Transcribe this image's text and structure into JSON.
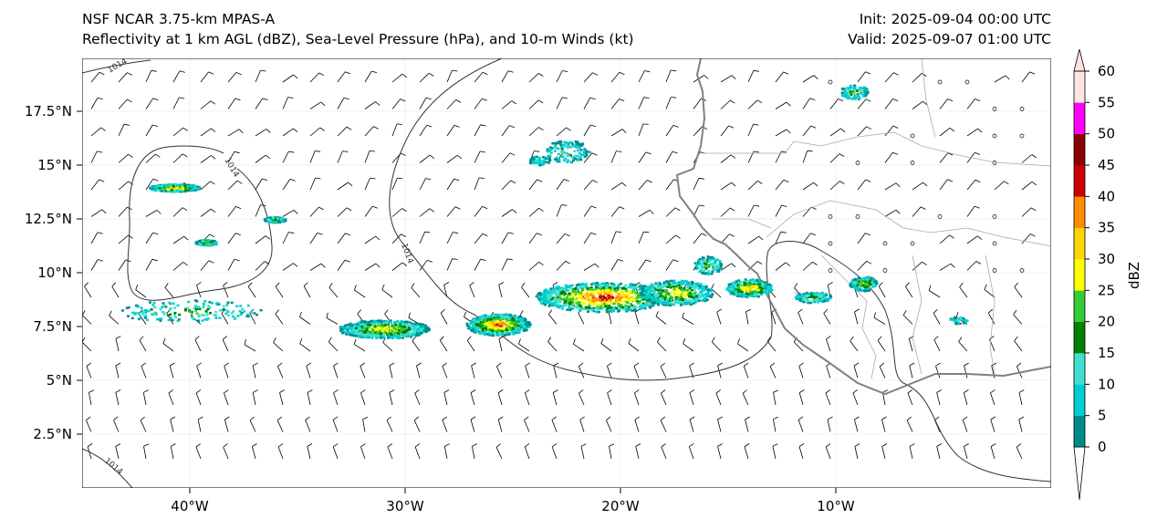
{
  "header": {
    "model": "NSF NCAR 3.75-km MPAS-A",
    "fields": "Reflectivity at 1 km AGL (dBZ), Sea-Level Pressure (hPa), and 10-m Winds (kt)",
    "init": "Init: 2025-09-04 00:00 UTC",
    "valid": "Valid: 2025-09-07 01:00 UTC"
  },
  "map": {
    "lat_ticks": [
      "17.5°N",
      "15°N",
      "12.5°N",
      "10°N",
      "7.5°N",
      "5°N",
      "2.5°N"
    ],
    "lon_ticks": [
      "40°W",
      "30°W",
      "20°W",
      "10°W"
    ],
    "isobar_label": "1014",
    "coast_color": "#808080",
    "border_color": "#a9a9a9",
    "isobar_color": "#333333"
  },
  "colorbar": {
    "label": "dBZ",
    "ticks": [
      "0",
      "5",
      "10",
      "15",
      "20",
      "25",
      "30",
      "35",
      "40",
      "45",
      "50",
      "55",
      "60"
    ],
    "colors": [
      "#008b8b",
      "#00ced1",
      "#40e0d0",
      "#008000",
      "#32cd32",
      "#ffff00",
      "#ffd700",
      "#ff8c00",
      "#cc0000",
      "#8b0000",
      "#ff00ff",
      "#ffe4e1"
    ]
  }
}
